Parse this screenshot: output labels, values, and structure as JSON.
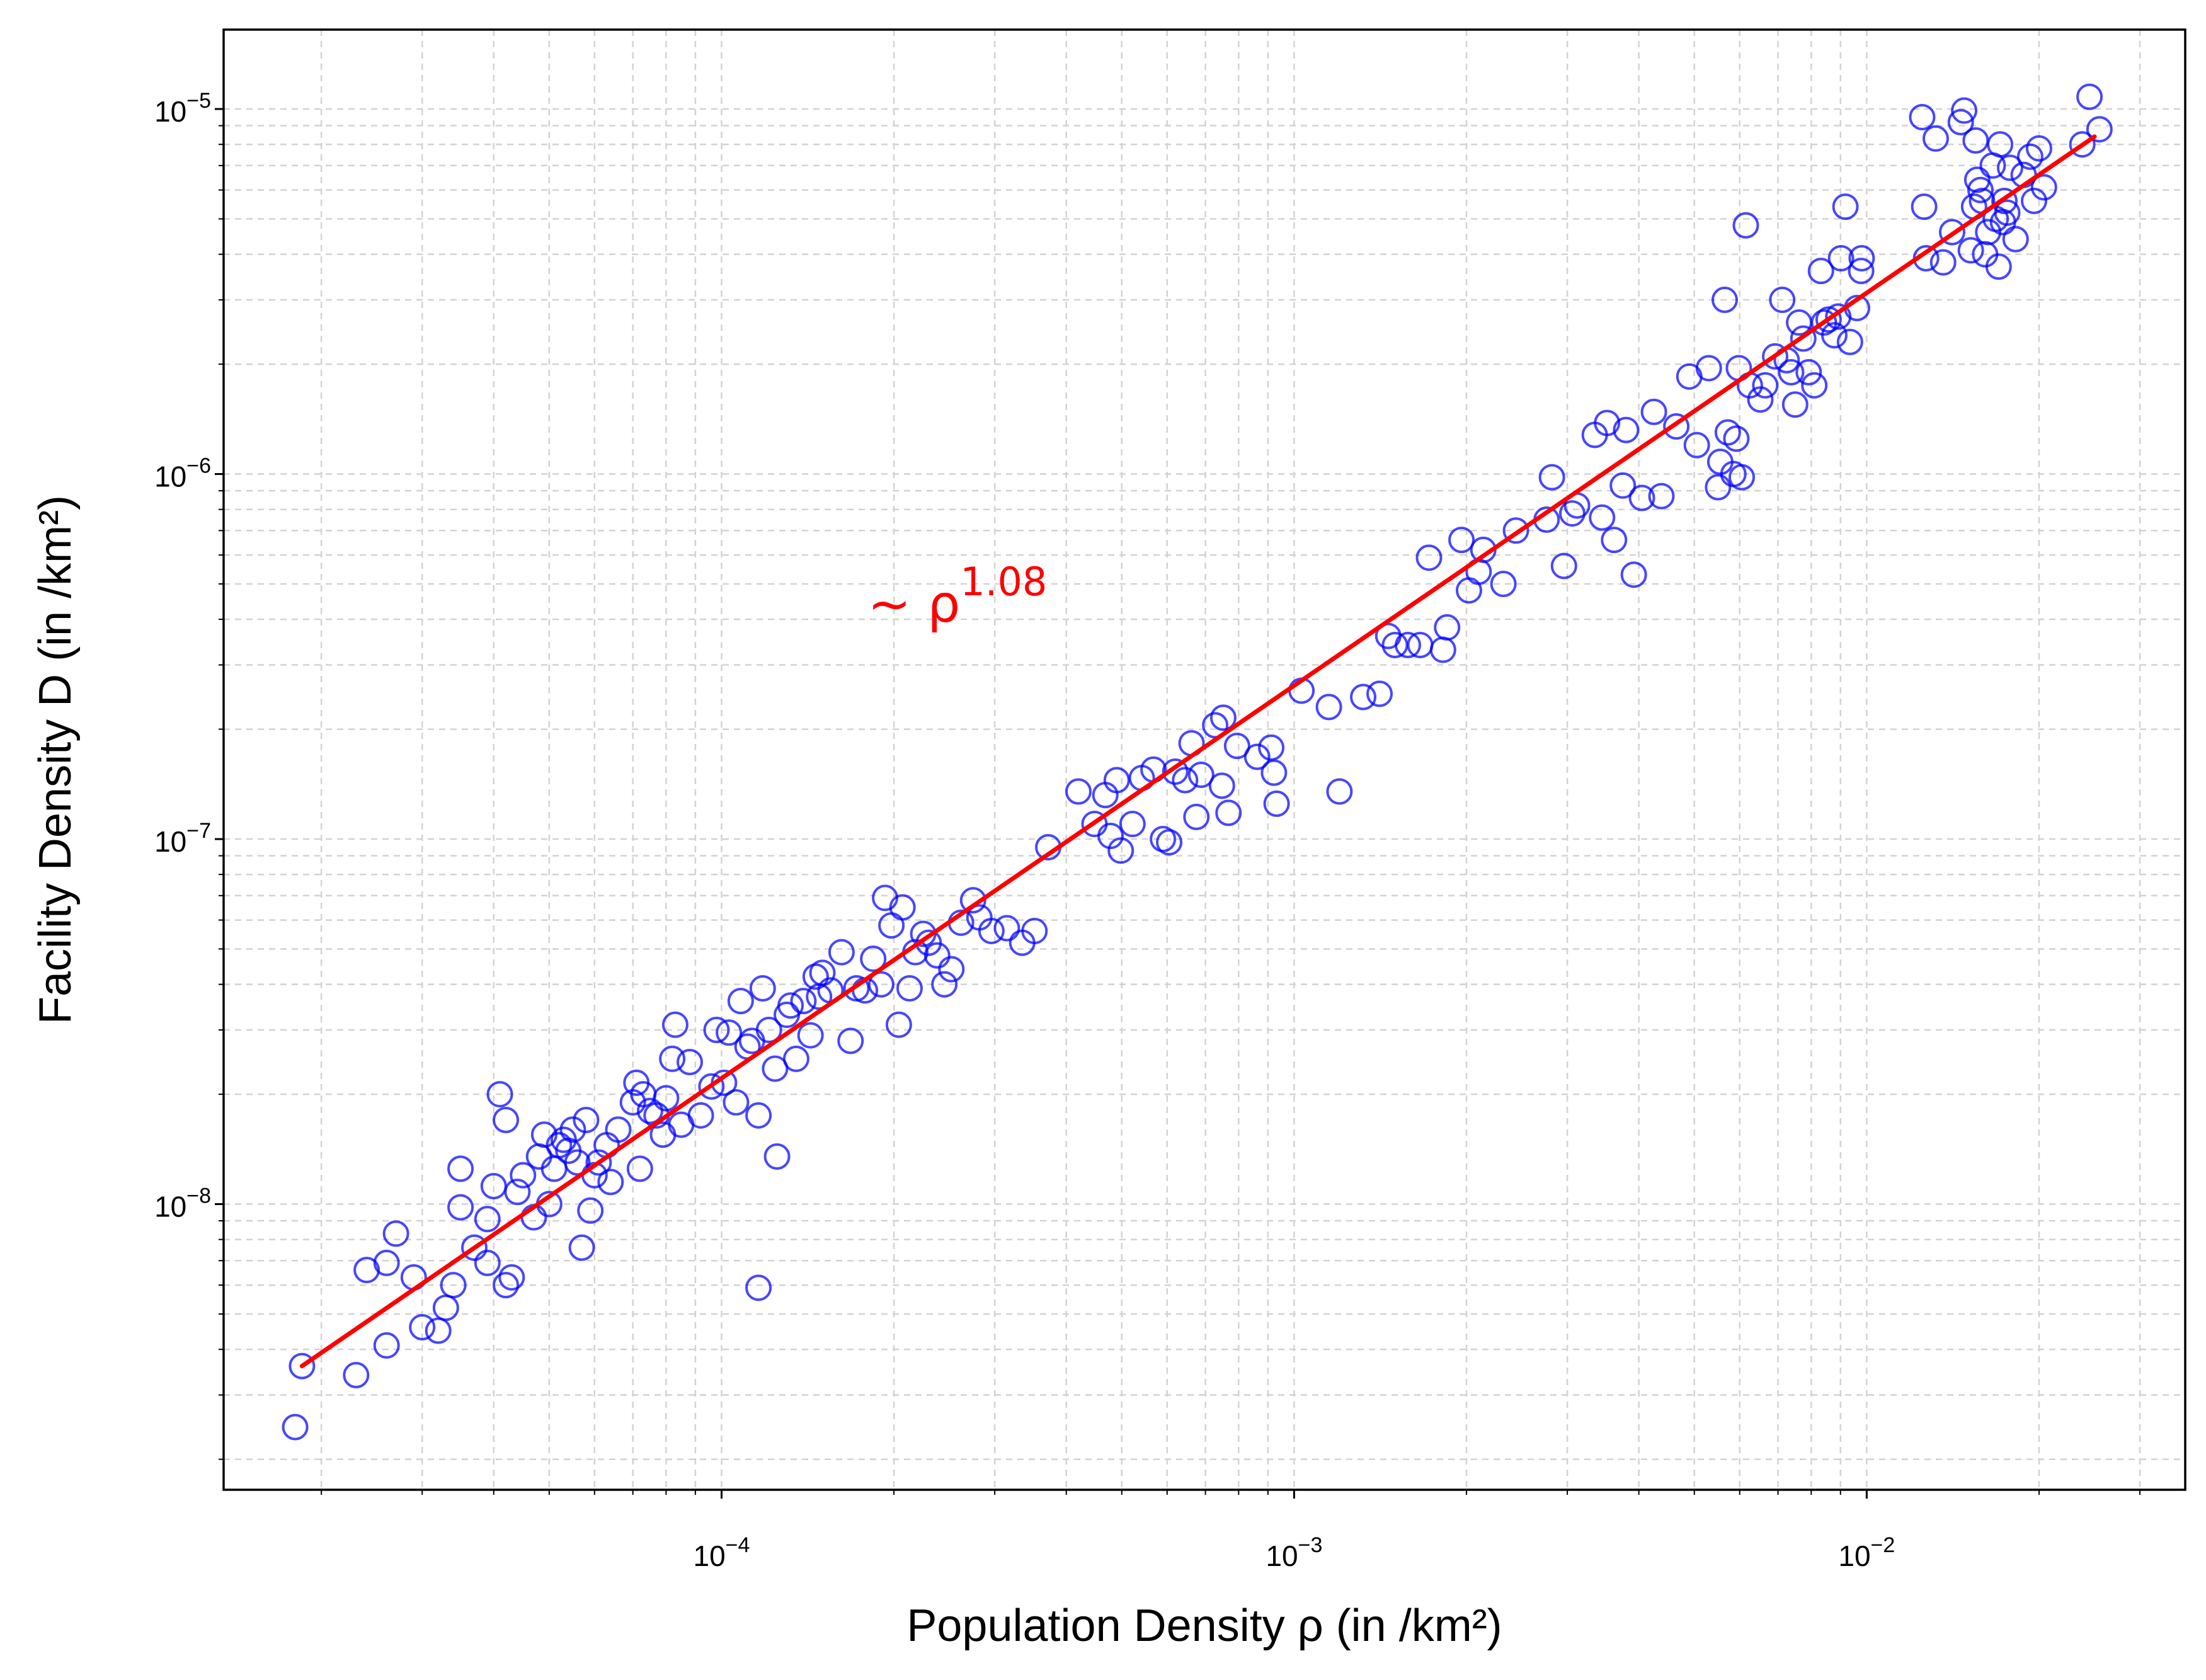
{
  "chart_data": {
    "type": "scatter",
    "title": "",
    "xlabel": "Population Density ρ (in /km²)",
    "ylabel": "Facility Density D (in /km²)",
    "x_scale": "log",
    "y_scale": "log",
    "xlim": [
      1.35e-05,
      0.036
    ],
    "ylim": [
      1.65e-09,
      1.65e-05
    ],
    "grid": true,
    "grid_style": "dashed",
    "x_ticks": [
      {
        "value": 0.0001,
        "base": "10",
        "exp": "−4"
      },
      {
        "value": 0.001,
        "base": "10",
        "exp": "−3"
      },
      {
        "value": 0.01,
        "base": "10",
        "exp": "−2"
      }
    ],
    "y_ticks": [
      {
        "value": 1e-08,
        "base": "10",
        "exp": "−8"
      },
      {
        "value": 1e-07,
        "base": "10",
        "exp": "−7"
      },
      {
        "value": 1e-06,
        "base": "10",
        "exp": "−6"
      },
      {
        "value": 1e-05,
        "base": "10",
        "exp": "−5"
      }
    ],
    "annotation": {
      "prefix": "∼ ρ",
      "exponent": "1.08",
      "x": 0.00018,
      "y": 4.4e-07,
      "color": "#ff0000"
    },
    "fit_line": {
      "exponent": 1.08,
      "x": [
        1.85e-05,
        0.025
      ],
      "y": [
        3.6e-09,
        8.4e-06
      ],
      "color": "#ff0000"
    },
    "series": [
      {
        "marker": "open-circle",
        "color": "#0000ff",
        "points": [
          [
            1.8e-05,
            2.45e-09
          ],
          [
            1.85e-05,
            3.6e-09
          ],
          [
            2.3e-05,
            3.4e-09
          ],
          [
            2.4e-05,
            6.6e-09
          ],
          [
            2.6e-05,
            4.1e-09
          ],
          [
            2.6e-05,
            6.9e-09
          ],
          [
            2.7e-05,
            8.3e-09
          ],
          [
            2.9e-05,
            6.3e-09
          ],
          [
            3e-05,
            4.6e-09
          ],
          [
            3.2e-05,
            4.5e-09
          ],
          [
            3.3e-05,
            5.2e-09
          ],
          [
            3.4e-05,
            6e-09
          ],
          [
            3.5e-05,
            9.8e-09
          ],
          [
            3.5e-05,
            1.25e-08
          ],
          [
            3.7e-05,
            7.6e-09
          ],
          [
            3.9e-05,
            6.9e-09
          ],
          [
            3.9e-05,
            9.1e-09
          ],
          [
            4e-05,
            1.12e-08
          ],
          [
            4.1e-05,
            2e-08
          ],
          [
            4.2e-05,
            1.7e-08
          ],
          [
            4.2e-05,
            6e-09
          ],
          [
            4.3e-05,
            6.3e-09
          ],
          [
            4.4e-05,
            1.08e-08
          ],
          [
            4.5e-05,
            1.2e-08
          ],
          [
            4.7e-05,
            9.2e-09
          ],
          [
            4.8e-05,
            1.35e-08
          ],
          [
            4.9e-05,
            1.55e-08
          ],
          [
            5e-05,
            1e-08
          ],
          [
            5.1e-05,
            1.25e-08
          ],
          [
            5.2e-05,
            1.45e-08
          ],
          [
            5.3e-05,
            1.5e-08
          ],
          [
            5.4e-05,
            1.4e-08
          ],
          [
            5.5e-05,
            1.6e-08
          ],
          [
            5.6e-05,
            1.3e-08
          ],
          [
            5.7e-05,
            7.6e-09
          ],
          [
            5.8e-05,
            1.7e-08
          ],
          [
            5.9e-05,
            9.6e-09
          ],
          [
            6e-05,
            1.2e-08
          ],
          [
            6.1e-05,
            1.3e-08
          ],
          [
            6.3e-05,
            1.45e-08
          ],
          [
            6.4e-05,
            1.15e-08
          ],
          [
            6.6e-05,
            1.6e-08
          ],
          [
            7e-05,
            1.9e-08
          ],
          [
            7.1e-05,
            2.15e-08
          ],
          [
            7.2e-05,
            1.25e-08
          ],
          [
            7.3e-05,
            2e-08
          ],
          [
            7.5e-05,
            1.8e-08
          ],
          [
            7.7e-05,
            1.75e-08
          ],
          [
            7.9e-05,
            1.55e-08
          ],
          [
            8e-05,
            1.95e-08
          ],
          [
            8.2e-05,
            2.5e-08
          ],
          [
            8.3e-05,
            3.1e-08
          ],
          [
            8.5e-05,
            1.65e-08
          ],
          [
            8.8e-05,
            2.45e-08
          ],
          [
            9.2e-05,
            1.75e-08
          ],
          [
            9.6e-05,
            2.1e-08
          ],
          [
            9.8e-05,
            3e-08
          ],
          [
            0.000101,
            2.15e-08
          ],
          [
            0.000103,
            2.95e-08
          ],
          [
            0.000106,
            1.9e-08
          ],
          [
            0.000108,
            3.6e-08
          ],
          [
            0.000111,
            2.7e-08
          ],
          [
            0.000113,
            2.8e-08
          ],
          [
            0.000116,
            1.75e-08
          ],
          [
            0.000116,
            5.9e-09
          ],
          [
            0.000118,
            3.9e-08
          ],
          [
            0.000121,
            3e-08
          ],
          [
            0.000124,
            2.35e-08
          ],
          [
            0.000125,
            1.35e-08
          ],
          [
            0.00013,
            3.3e-08
          ],
          [
            0.000132,
            3.5e-08
          ],
          [
            0.000135,
            2.5e-08
          ],
          [
            0.000139,
            3.6e-08
          ],
          [
            0.000143,
            2.9e-08
          ],
          [
            0.000146,
            4.2e-08
          ],
          [
            0.000148,
            3.7e-08
          ],
          [
            0.00015,
            4.3e-08
          ],
          [
            0.000155,
            3.85e-08
          ],
          [
            0.000162,
            4.9e-08
          ],
          [
            0.000168,
            2.8e-08
          ],
          [
            0.000172,
            3.9e-08
          ],
          [
            0.000178,
            3.85e-08
          ],
          [
            0.000184,
            4.7e-08
          ],
          [
            0.00019,
            4e-08
          ],
          [
            0.000193,
            6.9e-08
          ],
          [
            0.000198,
            5.8e-08
          ],
          [
            0.000204,
            3.1e-08
          ],
          [
            0.000207,
            6.5e-08
          ],
          [
            0.000213,
            3.9e-08
          ],
          [
            0.000218,
            4.9e-08
          ],
          [
            0.000225,
            5.5e-08
          ],
          [
            0.00023,
            5.2e-08
          ],
          [
            0.000238,
            4.8e-08
          ],
          [
            0.000245,
            4e-08
          ],
          [
            0.000252,
            4.4e-08
          ],
          [
            0.000262,
            5.9e-08
          ],
          [
            0.000275,
            6.8e-08
          ],
          [
            0.000282,
            6.1e-08
          ],
          [
            0.000296,
            5.6e-08
          ],
          [
            0.000315,
            5.7e-08
          ],
          [
            0.000335,
            5.2e-08
          ],
          [
            0.000352,
            5.6e-08
          ],
          [
            0.000372,
            9.5e-08
          ],
          [
            0.00042,
            1.35e-07
          ],
          [
            0.000448,
            1.1e-07
          ],
          [
            0.000468,
            1.32e-07
          ],
          [
            0.000478,
            1.02e-07
          ],
          [
            0.00049,
            1.45e-07
          ],
          [
            0.000498,
            9.3e-08
          ],
          [
            0.000522,
            1.1e-07
          ],
          [
            0.000542,
            1.47e-07
          ],
          [
            0.000568,
            1.55e-07
          ],
          [
            0.00059,
            1e-07
          ],
          [
            0.000605,
            9.8e-08
          ],
          [
            0.00062,
            1.53e-07
          ],
          [
            0.000645,
            1.45e-07
          ],
          [
            0.000662,
            1.83e-07
          ],
          [
            0.000675,
            1.15e-07
          ],
          [
            0.000688,
            1.5e-07
          ],
          [
            0.000728,
            2.05e-07
          ],
          [
            0.000748,
            1.4e-07
          ],
          [
            0.000752,
            2.15e-07
          ],
          [
            0.000768,
            1.18e-07
          ],
          [
            0.000795,
            1.8e-07
          ],
          [
            0.000862,
            1.68e-07
          ],
          [
            0.000912,
            1.78e-07
          ],
          [
            0.000922,
            1.52e-07
          ],
          [
            0.000932,
            1.25e-07
          ],
          [
            0.00103,
            2.55e-07
          ],
          [
            0.00115,
            2.3e-07
          ],
          [
            0.0012,
            1.35e-07
          ],
          [
            0.00132,
            2.45e-07
          ],
          [
            0.00141,
            2.5e-07
          ],
          [
            0.00146,
            3.6e-07
          ],
          [
            0.0015,
            3.4e-07
          ],
          [
            0.00158,
            3.4e-07
          ],
          [
            0.00166,
            3.4e-07
          ],
          [
            0.00172,
            5.9e-07
          ],
          [
            0.00182,
            3.3e-07
          ],
          [
            0.00185,
            3.8e-07
          ],
          [
            0.00196,
            6.6e-07
          ],
          [
            0.00202,
            4.8e-07
          ],
          [
            0.0021,
            5.4e-07
          ],
          [
            0.00214,
            6.2e-07
          ],
          [
            0.00232,
            5e-07
          ],
          [
            0.00244,
            7e-07
          ],
          [
            0.00276,
            7.5e-07
          ],
          [
            0.00282,
            9.8e-07
          ],
          [
            0.00296,
            5.6e-07
          ],
          [
            0.00306,
            7.8e-07
          ],
          [
            0.00312,
            8.2e-07
          ],
          [
            0.00335,
            1.28e-06
          ],
          [
            0.00345,
            7.6e-07
          ],
          [
            0.00352,
            1.38e-06
          ],
          [
            0.00362,
            6.6e-07
          ],
          [
            0.00375,
            9.3e-07
          ],
          [
            0.0038,
            1.32e-06
          ],
          [
            0.00392,
            5.3e-07
          ],
          [
            0.00405,
            8.6e-07
          ],
          [
            0.00425,
            1.48e-06
          ],
          [
            0.00438,
            8.7e-07
          ],
          [
            0.00465,
            1.35e-06
          ],
          [
            0.0049,
            1.85e-06
          ],
          [
            0.00505,
            1.2e-06
          ],
          [
            0.0053,
            1.95e-06
          ],
          [
            0.0055,
            9.2e-07
          ],
          [
            0.00555,
            1.08e-06
          ],
          [
            0.00565,
            3e-06
          ],
          [
            0.00572,
            1.3e-06
          ],
          [
            0.00585,
            1e-06
          ],
          [
            0.00592,
            1.25e-06
          ],
          [
            0.00598,
            1.95e-06
          ],
          [
            0.00605,
            9.8e-07
          ],
          [
            0.00615,
            4.8e-06
          ],
          [
            0.00625,
            1.75e-06
          ],
          [
            0.00652,
            1.6e-06
          ],
          [
            0.00665,
            1.75e-06
          ],
          [
            0.00692,
            2.1e-06
          ],
          [
            0.00712,
            3e-06
          ],
          [
            0.00725,
            2.05e-06
          ],
          [
            0.00738,
            1.9e-06
          ],
          [
            0.0075,
            1.55e-06
          ],
          [
            0.00762,
            2.6e-06
          ],
          [
            0.00775,
            2.35e-06
          ],
          [
            0.00792,
            1.9e-06
          ],
          [
            0.0081,
            1.75e-06
          ],
          [
            0.00832,
            3.6e-06
          ],
          [
            0.00842,
            2.6e-06
          ],
          [
            0.00858,
            2.65e-06
          ],
          [
            0.00878,
            2.4e-06
          ],
          [
            0.00892,
            2.7e-06
          ],
          [
            0.00902,
            3.9e-06
          ],
          [
            0.00918,
            5.4e-06
          ],
          [
            0.00935,
            2.3e-06
          ],
          [
            0.00962,
            2.85e-06
          ],
          [
            0.00978,
            3.6e-06
          ],
          [
            0.0098,
            3.9e-06
          ],
          [
            0.0125,
            9.5e-06
          ],
          [
            0.0126,
            5.4e-06
          ],
          [
            0.0127,
            3.9e-06
          ],
          [
            0.0132,
            8.3e-06
          ],
          [
            0.0136,
            3.8e-06
          ],
          [
            0.0141,
            4.6e-06
          ],
          [
            0.0146,
            9.2e-06
          ],
          [
            0.0148,
            9.9e-06
          ],
          [
            0.0152,
            4.1e-06
          ],
          [
            0.0154,
            5.4e-06
          ],
          [
            0.0155,
            8.2e-06
          ],
          [
            0.0156,
            6.4e-06
          ],
          [
            0.0158,
            6e-06
          ],
          [
            0.0159,
            5.6e-06
          ],
          [
            0.0161,
            4e-06
          ],
          [
            0.0163,
            4.6e-06
          ],
          [
            0.0166,
            7e-06
          ],
          [
            0.0168,
            5e-06
          ],
          [
            0.017,
            3.7e-06
          ],
          [
            0.0171,
            8e-06
          ],
          [
            0.0173,
            4.9e-06
          ],
          [
            0.0174,
            5.6e-06
          ],
          [
            0.0176,
            5.2e-06
          ],
          [
            0.0178,
            6.9e-06
          ],
          [
            0.0182,
            4.4e-06
          ],
          [
            0.0188,
            6.6e-06
          ],
          [
            0.0193,
            7.4e-06
          ],
          [
            0.0196,
            5.6e-06
          ],
          [
            0.02,
            7.8e-06
          ],
          [
            0.0204,
            6.1e-06
          ],
          [
            0.0238,
            8e-06
          ],
          [
            0.0245,
            1.08e-05
          ],
          [
            0.0255,
            8.8e-06
          ]
        ]
      }
    ]
  }
}
